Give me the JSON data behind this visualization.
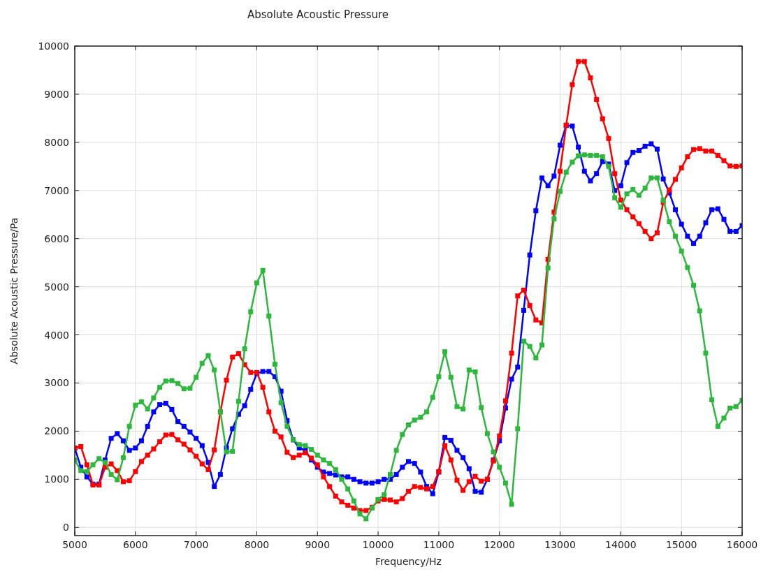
{
  "chart_data": {
    "type": "line",
    "title": "Absolute Acoustic Pressure",
    "xlabel": "Frequency/Hz",
    "ylabel": "Absolute Acoustic Pressure/Pa",
    "x": [
      5000,
      5100,
      5200,
      5300,
      5400,
      5500,
      5600,
      5700,
      5800,
      5900,
      6000,
      6100,
      6200,
      6300,
      6400,
      6500,
      6600,
      6700,
      6800,
      6900,
      7000,
      7100,
      7200,
      7300,
      7400,
      7500,
      7600,
      7700,
      7800,
      7900,
      8000,
      8100,
      8200,
      8300,
      8400,
      8500,
      8600,
      8700,
      8800,
      8900,
      9000,
      9100,
      9200,
      9300,
      9400,
      9500,
      9600,
      9700,
      9800,
      9900,
      10000,
      10100,
      10200,
      10300,
      10400,
      10500,
      10600,
      10700,
      10800,
      10900,
      11000,
      11100,
      11200,
      11300,
      11400,
      11500,
      11600,
      11700,
      11800,
      11900,
      12000,
      12100,
      12200,
      12300,
      12400,
      12500,
      12600,
      12700,
      12800,
      12900,
      13000,
      13100,
      13200,
      13300,
      13400,
      13500,
      13600,
      13700,
      13800,
      13900,
      14000,
      14100,
      14200,
      14300,
      14400,
      14500,
      14600,
      14700,
      14800,
      14900,
      15000,
      15100,
      15200,
      15300,
      15400,
      15500,
      15600,
      15700,
      15800,
      15900,
      16000
    ],
    "series": [
      {
        "color": "#0000ff",
        "values": [
          1650,
          1250,
          1050,
          900,
          900,
          1400,
          1850,
          1950,
          1800,
          1600,
          1650,
          1800,
          2100,
          2400,
          2550,
          2580,
          2450,
          2200,
          2100,
          1980,
          1850,
          1700,
          1350,
          850,
          1100,
          1650,
          2050,
          2350,
          2530,
          2870,
          3200,
          3240,
          3240,
          3130,
          2830,
          2220,
          1820,
          1650,
          1600,
          1400,
          1250,
          1150,
          1120,
          1090,
          1050,
          1050,
          1000,
          950,
          920,
          920,
          950,
          1000,
          1000,
          1100,
          1250,
          1370,
          1330,
          1150,
          850,
          700,
          1150,
          1870,
          1810,
          1600,
          1450,
          1220,
          750,
          730,
          1000,
          1400,
          1800,
          2480,
          3080,
          3330,
          4510,
          5660,
          6580,
          7260,
          7100,
          7300,
          7940,
          8350,
          8340,
          7900,
          7400,
          7200,
          7350,
          7600,
          7550,
          7000,
          7100,
          7580,
          7790,
          7830,
          7920,
          7970,
          7860,
          7240,
          6950,
          6600,
          6300,
          6050,
          5900,
          6050,
          6330,
          6600,
          6620,
          6400,
          6150,
          6150,
          6270
        ]
      },
      {
        "color": "#ff0000",
        "values": [
          1650,
          1680,
          1300,
          880,
          880,
          1250,
          1320,
          1180,
          950,
          970,
          1160,
          1370,
          1500,
          1630,
          1780,
          1920,
          1930,
          1820,
          1730,
          1610,
          1480,
          1320,
          1200,
          1610,
          2400,
          3060,
          3540,
          3610,
          3380,
          3220,
          3220,
          2910,
          2400,
          2000,
          1880,
          1560,
          1450,
          1500,
          1550,
          1440,
          1300,
          1050,
          850,
          650,
          530,
          460,
          400,
          350,
          350,
          420,
          550,
          580,
          570,
          530,
          600,
          750,
          850,
          830,
          800,
          850,
          1160,
          1700,
          1400,
          980,
          770,
          950,
          1060,
          960,
          1000,
          1380,
          1900,
          2630,
          3620,
          4810,
          4930,
          4610,
          4310,
          4250,
          5570,
          6550,
          7400,
          8360,
          9200,
          9680,
          9680,
          9340,
          8890,
          8490,
          8080,
          7350,
          6800,
          6600,
          6450,
          6310,
          6150,
          6000,
          6120,
          6750,
          7010,
          7230,
          7470,
          7700,
          7850,
          7870,
          7820,
          7820,
          7730,
          7620,
          7510,
          7500,
          7510
        ]
      },
      {
        "color": "#2db83d",
        "values": [
          1400,
          1180,
          1160,
          1300,
          1430,
          1350,
          1100,
          990,
          1450,
          2100,
          2540,
          2610,
          2460,
          2690,
          2910,
          3040,
          3050,
          2990,
          2880,
          2890,
          3120,
          3410,
          3570,
          3270,
          2400,
          1570,
          1580,
          2620,
          3710,
          4480,
          5080,
          5340,
          4390,
          3390,
          2590,
          2100,
          1820,
          1720,
          1700,
          1620,
          1500,
          1400,
          1330,
          1200,
          1000,
          800,
          550,
          280,
          180,
          400,
          580,
          680,
          1100,
          1600,
          1930,
          2130,
          2230,
          2290,
          2400,
          2700,
          3130,
          3650,
          3120,
          2510,
          2460,
          3270,
          3230,
          2490,
          1950,
          1570,
          1250,
          920,
          480,
          2050,
          3870,
          3760,
          3520,
          3790,
          5390,
          6410,
          6980,
          7380,
          7590,
          7720,
          7740,
          7730,
          7730,
          7700,
          7500,
          6850,
          6650,
          6930,
          7020,
          6900,
          7050,
          7260,
          7260,
          6800,
          6350,
          6050,
          5740,
          5400,
          5030,
          4500,
          3620,
          2650,
          2100,
          2270,
          2480,
          2510,
          2640
        ]
      }
    ],
    "xlim": [
      5000,
      16000
    ],
    "xticks": [
      5000,
      6000,
      7000,
      8000,
      9000,
      10000,
      11000,
      12000,
      13000,
      14000,
      15000,
      16000
    ],
    "ylim": [
      -170,
      10000
    ],
    "yticks": [
      0,
      1000,
      2000,
      3000,
      4000,
      5000,
      6000,
      7000,
      8000,
      9000,
      10000
    ],
    "grid": true,
    "marker": "square",
    "line_style": "solid"
  }
}
